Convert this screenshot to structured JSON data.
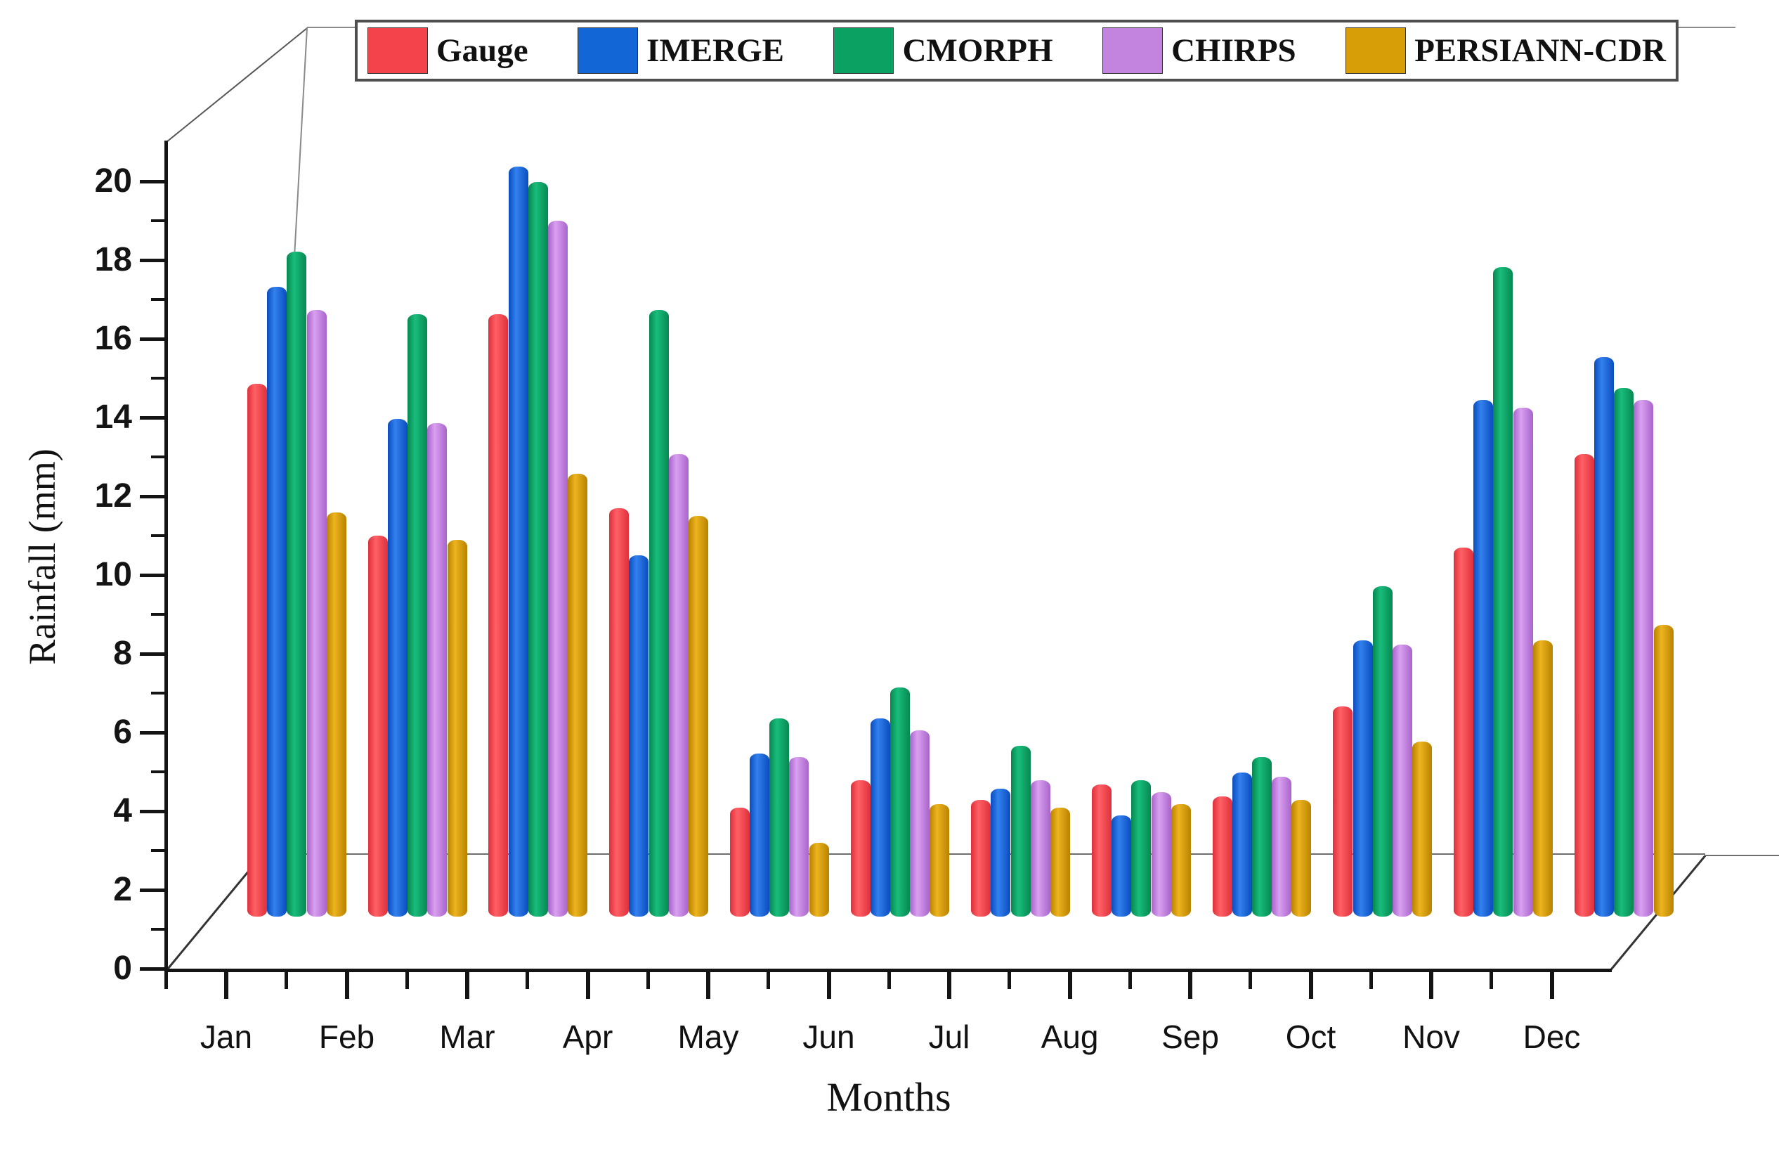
{
  "chart_data": {
    "type": "bar",
    "title": "",
    "xlabel": "Months",
    "ylabel": "Rainfall (mm)",
    "ylim": [
      0,
      20
    ],
    "ytick_step": 2,
    "ytick_labels": [
      "0",
      "2",
      "4",
      "6",
      "8",
      "10",
      "12",
      "14",
      "16",
      "18",
      "20"
    ],
    "grid": false,
    "legend_position": "top",
    "style": "pseudo-3d-bars",
    "categories": [
      "Jan",
      "Feb",
      "Mar",
      "Apr",
      "May",
      "Jun",
      "Jul",
      "Aug",
      "Sep",
      "Oct",
      "Nov",
      "Dec"
    ],
    "series": [
      {
        "name": "Gauge",
        "color": "#f5434c",
        "color_light": "#ff6066",
        "color_dark": "#df323c",
        "values": [
          13.7,
          9.8,
          15.5,
          10.5,
          2.8,
          3.5,
          3.0,
          3.4,
          3.1,
          5.4,
          9.5,
          11.9
        ]
      },
      {
        "name": "IMERGE",
        "color": "#1266d6",
        "color_light": "#3381ee",
        "color_dark": "#0b4ec0",
        "values": [
          16.2,
          12.8,
          19.3,
          9.3,
          4.2,
          5.1,
          3.3,
          2.6,
          3.7,
          7.1,
          13.3,
          14.4
        ]
      },
      {
        "name": "CMORPH",
        "color": "#0ba163",
        "color_light": "#19bd7c",
        "color_dark": "#078a52",
        "values": [
          17.1,
          15.5,
          18.9,
          15.6,
          5.1,
          5.9,
          4.4,
          3.5,
          4.1,
          8.5,
          16.7,
          13.6
        ]
      },
      {
        "name": "CHIRPS",
        "color": "#c384e0",
        "color_light": "#d9a0f0",
        "color_dark": "#aa66cc",
        "values": [
          15.6,
          12.7,
          17.9,
          11.9,
          4.1,
          4.8,
          3.5,
          3.2,
          3.6,
          7.0,
          13.1,
          13.3
        ]
      },
      {
        "name": "PERSIANN-CDR",
        "color": "#d89e08",
        "color_light": "#edb41f",
        "color_dark": "#ba8400",
        "values": [
          10.4,
          9.7,
          11.4,
          10.3,
          1.9,
          2.9,
          2.8,
          2.9,
          3.0,
          4.5,
          7.1,
          7.5
        ]
      }
    ]
  },
  "frame": {
    "axis_color": "#141414",
    "box_line_color": "#6e6e6e",
    "background": "#ffffff"
  }
}
